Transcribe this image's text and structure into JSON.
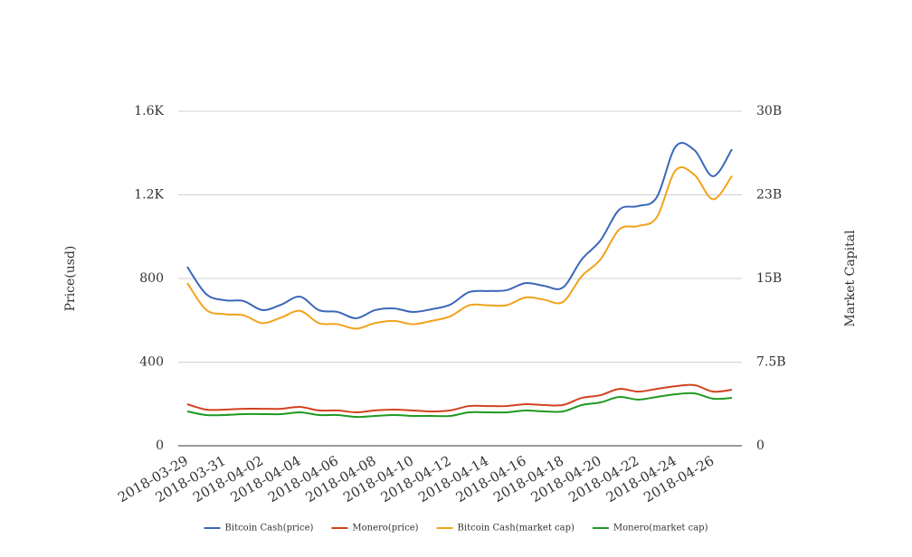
{
  "chart_data": {
    "type": "line",
    "categories": [
      "2018-03-29",
      null,
      "2018-03-31",
      null,
      "2018-04-02",
      null,
      "2018-04-04",
      null,
      "2018-04-06",
      null,
      "2018-04-08",
      null,
      "2018-04-10",
      null,
      "2018-04-12",
      null,
      "2018-04-14",
      null,
      "2018-04-16",
      null,
      "2018-04-18",
      null,
      "2018-04-20",
      null,
      "2018-04-22",
      null,
      "2018-04-24",
      null,
      "2018-04-26",
      null
    ],
    "ylabel": "Price(usd)",
    "y2label": "Market Capital",
    "ylim": [
      0,
      1600
    ],
    "yticks": [
      0,
      400,
      800,
      {
        "value": 1200,
        "label": "1.2K"
      },
      {
        "value": 1600,
        "label": "1.6K"
      }
    ],
    "y2lim": [
      0,
      30000000000
    ],
    "y2ticks": [
      0,
      {
        "value": 7500000000,
        "label": "7.5B"
      },
      {
        "value": 15000000000,
        "label": "15B"
      },
      {
        "value": 22500000000,
        "label": "23B"
      },
      {
        "value": 30000000000,
        "label": "30B"
      }
    ],
    "grid": true,
    "legend": "bottom",
    "series": [
      {
        "name": "Bitcoin Cash(price)",
        "color": "#3b67b8",
        "values": [
          856,
          726,
          696,
          692,
          649,
          675,
          713,
          649,
          640,
          610,
          649,
          657,
          640,
          653,
          675,
          735,
          740,
          744,
          778,
          765,
          757,
          891,
          982,
          1129,
          1146,
          1189,
          1431,
          1414,
          1289,
          1418
        ]
      },
      {
        "name": "Monero(price)",
        "color": "#d2421e",
        "values": [
          199,
          173,
          173,
          177,
          177,
          177,
          186,
          169,
          169,
          160,
          169,
          173,
          169,
          164,
          169,
          190,
          190,
          190,
          199,
          195,
          195,
          229,
          242,
          272,
          259,
          272,
          285,
          290,
          259,
          268
        ]
      },
      {
        "name": "Bitcoin Cash(market cap)",
        "color": "#f2a21c",
        "axis": "y2",
        "values": [
          14600000000,
          12200000000,
          11800000000,
          11700000000,
          11000000000,
          11500000000,
          12100000000,
          11000000000,
          10900000000,
          10500000000,
          11000000000,
          11200000000,
          10900000000,
          11200000000,
          11600000000,
          12600000000,
          12600000000,
          12600000000,
          13300000000,
          13100000000,
          12900000000,
          15200000000,
          16700000000,
          19400000000,
          19700000000,
          20500000000,
          24700000000,
          24300000000,
          22100000000,
          24200000000
        ]
      },
      {
        "name": "Monero(market cap)",
        "color": "#1f9a22",
        "axis": "y2",
        "values": [
          3080000000,
          2760000000,
          2760000000,
          2840000000,
          2840000000,
          2840000000,
          3000000000,
          2760000000,
          2760000000,
          2590000000,
          2680000000,
          2760000000,
          2680000000,
          2680000000,
          2680000000,
          3000000000,
          3000000000,
          3000000000,
          3160000000,
          3080000000,
          3080000000,
          3650000000,
          3890000000,
          4380000000,
          4140000000,
          4380000000,
          4620000000,
          4700000000,
          4220000000,
          4300000000
        ]
      }
    ]
  }
}
